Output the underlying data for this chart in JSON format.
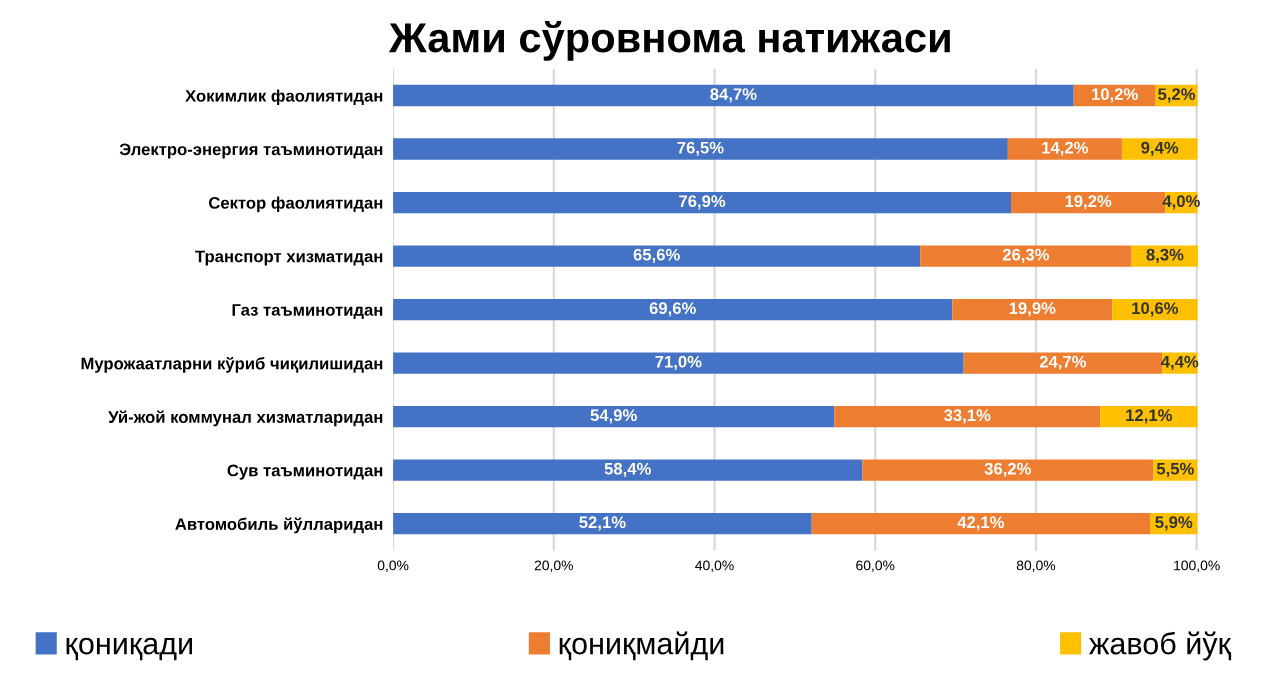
{
  "chart_data": {
    "type": "bar",
    "orientation": "horizontal",
    "stacked": true,
    "title": "Жами сўровнома натижаси",
    "categories": [
      "Хокимлик фаолиятидан",
      "Электро-энергия таъминотидан",
      "Сектор фаолиятидан",
      "Транспорт хизматидан",
      "Газ таъминотидан",
      "Мурожаатларни кўриб чиқилишидан",
      "Уй-жой коммунал хизматларидан",
      "Сув таъминотидан",
      "Автомобиль йўлларидан"
    ],
    "series": [
      {
        "name": "қониқади",
        "color": "#4472c4",
        "values": [
          84.7,
          76.5,
          76.9,
          65.6,
          69.6,
          71.0,
          54.9,
          58.4,
          52.1
        ],
        "value_labels": [
          "84,7%",
          "76,5%",
          "76,9%",
          "65,6%",
          "69,6%",
          "71,0%",
          "54,9%",
          "58,4%",
          "52,1%"
        ]
      },
      {
        "name": "қониқмайди",
        "color": "#ed7d31",
        "values": [
          10.2,
          14.2,
          19.2,
          26.3,
          19.9,
          24.7,
          33.1,
          36.2,
          42.1
        ],
        "value_labels": [
          "10,2%",
          "14,2%",
          "19,2%",
          "26,3%",
          "19,9%",
          "24,7%",
          "33,1%",
          "36,2%",
          "42,1%"
        ]
      },
      {
        "name": "жавоб йўқ",
        "color": "#ffc000",
        "values": [
          5.2,
          9.4,
          4.0,
          8.3,
          10.6,
          4.4,
          12.1,
          5.5,
          5.9
        ],
        "value_labels": [
          "5,2%",
          "9,4%",
          "4,0%",
          "8,3%",
          "10,6%",
          "4,4%",
          "12,1%",
          "5,5%",
          "5,9%"
        ]
      }
    ],
    "xlim": [
      0,
      100.2
    ],
    "xticks": [
      {
        "value": 0,
        "label": "0,0%"
      },
      {
        "value": 20,
        "label": "20,0%"
      },
      {
        "value": 40,
        "label": "40,0%"
      },
      {
        "value": 60,
        "label": "60,0%"
      },
      {
        "value": 80,
        "label": "80,0%"
      },
      {
        "value": 100,
        "label": "100,0%"
      }
    ],
    "grid": "x",
    "legend": "bottom"
  }
}
